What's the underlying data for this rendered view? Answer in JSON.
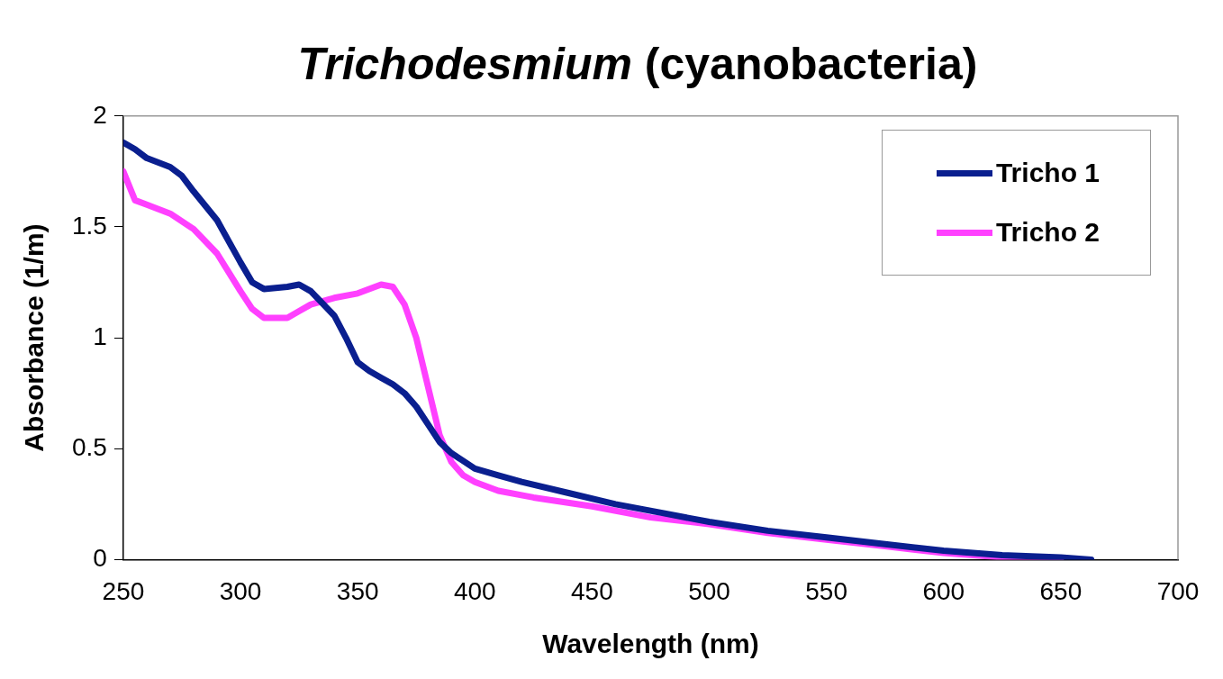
{
  "chart_data": {
    "type": "line",
    "title": "Trichodesmium (cyanobacteria)",
    "xlabel": "Wavelength (nm)",
    "ylabel": "Absorbance (1/m)",
    "xlim": [
      250,
      700
    ],
    "xticks": [
      250,
      300,
      350,
      400,
      450,
      500,
      550,
      600,
      650,
      700
    ],
    "ylim": [
      0,
      2
    ],
    "yticks": [
      0,
      0.5,
      1,
      1.5,
      2
    ],
    "grid": false,
    "legend": "top right",
    "marker": "none",
    "line_style": "solid",
    "series": [
      {
        "name": "Tricho 1",
        "color": "#0a1f8f",
        "x": [
          250,
          255,
          260,
          270,
          275,
          280,
          290,
          300,
          305,
          310,
          320,
          325,
          330,
          340,
          345,
          350,
          355,
          360,
          365,
          370,
          375,
          380,
          385,
          390,
          400,
          410,
          420,
          440,
          460,
          480,
          500,
          525,
          550,
          575,
          600,
          625,
          650,
          663
        ],
        "values": [
          1.88,
          1.85,
          1.81,
          1.77,
          1.73,
          1.66,
          1.53,
          1.34,
          1.25,
          1.22,
          1.23,
          1.24,
          1.21,
          1.1,
          1.0,
          0.89,
          0.85,
          0.82,
          0.79,
          0.75,
          0.69,
          0.61,
          0.53,
          0.48,
          0.41,
          0.38,
          0.35,
          0.3,
          0.25,
          0.21,
          0.17,
          0.13,
          0.1,
          0.07,
          0.04,
          0.02,
          0.01,
          0
        ]
      },
      {
        "name": "Tricho 2",
        "color": "#ff40ff",
        "x": [
          250,
          255,
          260,
          270,
          280,
          290,
          300,
          305,
          310,
          320,
          325,
          330,
          340,
          350,
          360,
          365,
          370,
          375,
          380,
          385,
          390,
          395,
          400,
          410,
          425,
          450,
          475,
          500,
          525,
          550,
          575,
          600,
          625,
          650
        ],
        "values": [
          1.75,
          1.62,
          1.6,
          1.56,
          1.49,
          1.38,
          1.21,
          1.13,
          1.09,
          1.09,
          1.12,
          1.15,
          1.18,
          1.2,
          1.24,
          1.23,
          1.15,
          1.0,
          0.78,
          0.56,
          0.44,
          0.38,
          0.35,
          0.31,
          0.28,
          0.24,
          0.19,
          0.16,
          0.12,
          0.09,
          0.06,
          0.03,
          0.01,
          0
        ]
      }
    ]
  }
}
